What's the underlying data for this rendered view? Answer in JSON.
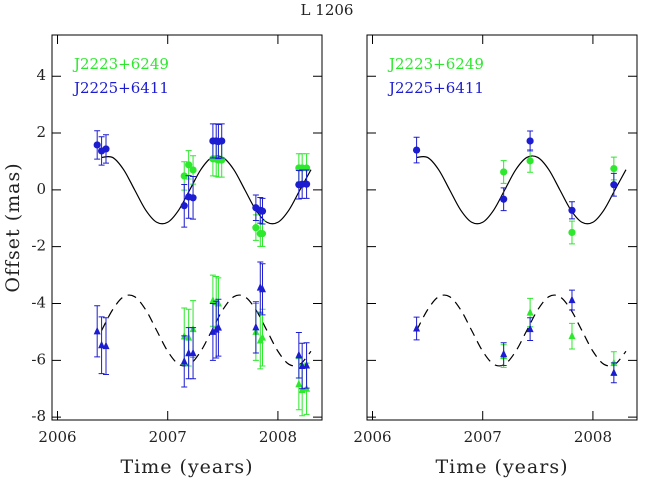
{
  "title": "L 1206",
  "chart_data": [
    {
      "type": "scatter",
      "xlabel": "Time (years)",
      "ylabel": "Offset (mas)",
      "xlim": [
        2005.95,
        2008.4
      ],
      "ylim": [
        -8.1,
        5.45
      ],
      "xticks": [
        2006,
        2007,
        2008
      ],
      "yticks": [
        4,
        2,
        0,
        -2,
        -4,
        -6,
        -8
      ],
      "ytick_labels": true,
      "legend": "upper left",
      "grid": false,
      "series": [
        {
          "name": "J2223+6249",
          "color": "#2ee82e",
          "marker": "circle",
          "x": [
            2007.15,
            2007.19,
            2007.23,
            2007.41,
            2007.44,
            2007.46,
            2007.49,
            2007.8,
            2007.84,
            2007.86,
            2008.19,
            2008.22,
            2008.26
          ],
          "values": [
            0.49,
            0.88,
            0.7,
            1.09,
            1.08,
            1.05,
            1.05,
            -1.33,
            -1.54,
            -1.54,
            0.77,
            0.77,
            0.77
          ],
          "errors": [
            0.5,
            0.5,
            0.5,
            0.6,
            0.6,
            0.6,
            0.6,
            0.45,
            0.45,
            0.45,
            0.5,
            0.5,
            0.5
          ]
        },
        {
          "name": "J2225+6411",
          "color": "#1c1cd0",
          "marker": "circle",
          "x": [
            2006.36,
            2006.4,
            2006.44,
            2007.15,
            2007.19,
            2007.23,
            2007.41,
            2007.44,
            2007.46,
            2007.49,
            2007.8,
            2007.84,
            2007.86,
            2008.19,
            2008.22,
            2008.26
          ],
          "values": [
            1.58,
            1.37,
            1.44,
            -0.56,
            -0.25,
            -0.28,
            1.72,
            1.72,
            1.7,
            1.72,
            -0.63,
            -0.72,
            -0.75,
            0.18,
            0.2,
            0.2
          ],
          "errors": [
            0.5,
            0.5,
            0.5,
            0.75,
            0.75,
            0.75,
            0.6,
            0.6,
            0.6,
            0.6,
            0.45,
            0.45,
            0.45,
            0.5,
            0.5,
            0.5
          ]
        },
        {
          "color": "#2ee82e",
          "marker": "triangle",
          "x": [
            2007.15,
            2007.19,
            2007.23,
            2007.41,
            2007.44,
            2007.46,
            2007.8,
            2007.84,
            2007.86,
            2008.19,
            2008.22,
            2008.26
          ],
          "values": [
            -5.16,
            -5.2,
            -4.9,
            -3.9,
            -3.95,
            -4.0,
            -5.0,
            -5.3,
            -5.2,
            -6.84,
            -7.05,
            -7.0
          ],
          "errors": [
            1.0,
            1.0,
            1.0,
            0.9,
            0.9,
            0.9,
            1.0,
            1.0,
            1.0,
            0.9,
            0.9,
            0.9
          ]
        },
        {
          "color": "#1c1cd0",
          "marker": "triangle",
          "x": [
            2006.36,
            2006.4,
            2006.44,
            2007.15,
            2007.19,
            2007.23,
            2007.41,
            2007.44,
            2007.46,
            2007.8,
            2007.84,
            2007.86,
            2008.19,
            2008.22,
            2008.26
          ],
          "values": [
            -4.98,
            -5.47,
            -5.5,
            -6.04,
            -5.75,
            -5.75,
            -5.0,
            -4.92,
            -4.85,
            -4.84,
            -3.44,
            -3.5,
            -5.82,
            -6.2,
            -6.18
          ],
          "errors": [
            0.9,
            1.0,
            1.0,
            0.9,
            0.9,
            0.9,
            1.0,
            1.0,
            1.0,
            0.9,
            0.9,
            0.9,
            0.8,
            0.8,
            0.8
          ]
        }
      ],
      "curves": [
        {
          "color": "#000000",
          "dashed": false,
          "x": [
            2006.4,
            2006.5,
            2006.6,
            2006.7,
            2006.8,
            2006.9,
            2007.0,
            2007.1,
            2007.2,
            2007.3,
            2007.4,
            2007.5,
            2007.6,
            2007.7,
            2007.8,
            2007.9,
            2008.0,
            2008.1,
            2008.2,
            2008.3
          ],
          "values": [
            1.14,
            1.14,
            0.71,
            0,
            -0.71,
            -1.14,
            -1.14,
            -0.71,
            0,
            0.71,
            1.14,
            1.14,
            0.71,
            0,
            -0.71,
            -1.14,
            -1.14,
            -0.71,
            0,
            0.71
          ]
        },
        {
          "color": "#000000",
          "dashed": true,
          "x": [
            2006.4,
            2006.5,
            2006.6,
            2006.7,
            2006.8,
            2006.9,
            2007.0,
            2007.1,
            2007.2,
            2007.3,
            2007.4,
            2007.5,
            2007.6,
            2007.7,
            2007.8,
            2007.9,
            2008.0,
            2008.1,
            2008.2,
            2008.3
          ],
          "values": [
            -4.95,
            -4.22,
            -3.76,
            -3.76,
            -4.22,
            -4.95,
            -5.68,
            -6.14,
            -6.14,
            -5.68,
            -4.95,
            -4.22,
            -3.76,
            -3.76,
            -4.22,
            -4.95,
            -5.68,
            -6.14,
            -6.14,
            -5.68
          ]
        }
      ]
    },
    {
      "type": "scatter",
      "xlabel": "Time (years)",
      "xlim": [
        2005.95,
        2008.4
      ],
      "ylim": [
        -8.1,
        5.45
      ],
      "xticks": [
        2006,
        2007,
        2008
      ],
      "yticks": [
        4,
        2,
        0,
        -2,
        -4,
        -6,
        -8
      ],
      "ytick_labels": false,
      "legend": "upper left",
      "grid": false,
      "series": [
        {
          "name": "J2223+6249",
          "color": "#2ee82e",
          "marker": "circle",
          "x": [
            2007.19,
            2007.43,
            2007.81,
            2008.19
          ],
          "values": [
            0.63,
            1.02,
            -1.5,
            0.75
          ],
          "errors": [
            0.4,
            0.4,
            0.4,
            0.4
          ]
        },
        {
          "name": "J2225+6411",
          "color": "#1c1cd0",
          "marker": "circle",
          "x": [
            2006.4,
            2007.19,
            2007.43,
            2007.81,
            2008.19
          ],
          "values": [
            1.4,
            -0.33,
            1.72,
            -0.72,
            0.18
          ],
          "errors": [
            0.45,
            0.4,
            0.35,
            0.3,
            0.4
          ]
        },
        {
          "color": "#2ee82e",
          "marker": "triangle",
          "x": [
            2007.19,
            2007.43,
            2007.81,
            2008.19
          ],
          "values": [
            -5.85,
            -4.32,
            -5.15,
            -6.1
          ],
          "errors": [
            0.4,
            0.5,
            0.45,
            0.4
          ]
        },
        {
          "color": "#1c1cd0",
          "marker": "triangle",
          "x": [
            2006.4,
            2007.19,
            2007.43,
            2007.81,
            2008.19
          ],
          "values": [
            -4.88,
            -5.78,
            -4.9,
            -3.88,
            -6.44
          ],
          "errors": [
            0.4,
            0.4,
            0.4,
            0.35,
            0.35
          ]
        }
      ],
      "curves": [
        {
          "color": "#000000",
          "dashed": false,
          "x": [
            2006.4,
            2006.5,
            2006.6,
            2006.7,
            2006.8,
            2006.9,
            2007.0,
            2007.1,
            2007.2,
            2007.3,
            2007.4,
            2007.5,
            2007.6,
            2007.7,
            2007.8,
            2007.9,
            2008.0,
            2008.1,
            2008.2,
            2008.3
          ],
          "values": [
            1.14,
            1.14,
            0.71,
            0,
            -0.71,
            -1.14,
            -1.14,
            -0.71,
            0,
            0.71,
            1.14,
            1.14,
            0.71,
            0,
            -0.71,
            -1.14,
            -1.14,
            -0.71,
            0,
            0.71
          ]
        },
        {
          "color": "#000000",
          "dashed": true,
          "x": [
            2006.4,
            2006.5,
            2006.6,
            2006.7,
            2006.8,
            2006.9,
            2007.0,
            2007.1,
            2007.2,
            2007.3,
            2007.4,
            2007.5,
            2007.6,
            2007.7,
            2007.8,
            2007.9,
            2008.0,
            2008.1,
            2008.2,
            2008.3
          ],
          "values": [
            -4.95,
            -4.22,
            -3.76,
            -3.76,
            -4.22,
            -4.95,
            -5.68,
            -6.14,
            -6.14,
            -5.68,
            -4.95,
            -4.22,
            -3.76,
            -3.76,
            -4.22,
            -4.95,
            -5.68,
            -6.14,
            -6.14,
            -5.68
          ]
        }
      ]
    }
  ]
}
